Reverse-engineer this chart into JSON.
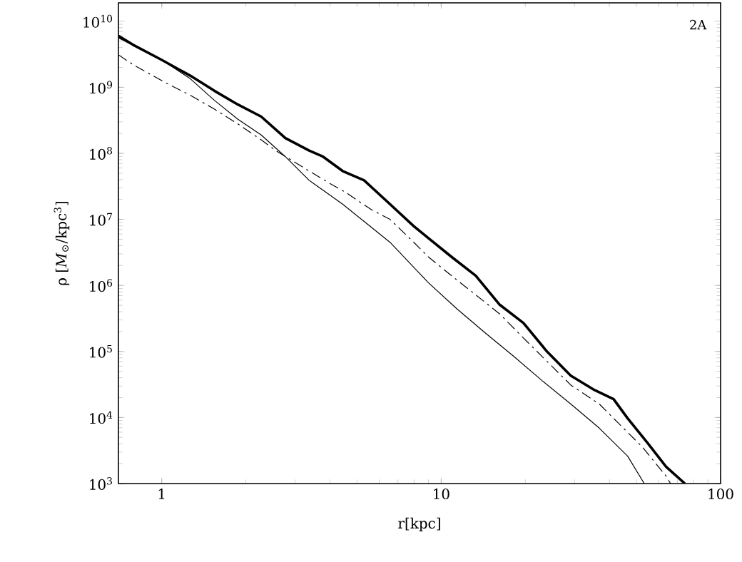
{
  "chart_data": {
    "type": "line",
    "xlabel": "r[kpc]",
    "ylabel": "ρ [*M*$_{⊙}$/kpc$^{3}$]",
    "log": "xy",
    "marker": "none",
    "grid": false,
    "xlim": [
      0.7,
      100
    ],
    "ylim": [
      1000,
      19000000000
    ],
    "xticks": [
      1,
      10,
      100
    ],
    "yticks": [
      {
        "value": 1000,
        "label": "10$^{3}$"
      },
      {
        "value": 10000,
        "label": "10$^{4}$"
      },
      {
        "value": 100000,
        "label": "10$^{5}$"
      },
      {
        "value": 1000000,
        "label": "10$^{6}$"
      },
      {
        "value": 10000000,
        "label": "10$^{7}$"
      },
      {
        "value": 100000000,
        "label": "10$^{8}$"
      },
      {
        "value": 1000000000,
        "label": "10$^{9}$"
      },
      {
        "value": 10000000000,
        "label": "10$^{10}$"
      }
    ],
    "annotations": [
      "2A"
    ],
    "series": [
      {
        "color": "#000000",
        "line_style": "solid",
        "x": [
          0.7,
          0.79,
          1.0,
          1.265,
          1.54,
          1.87,
          2.27,
          2.77,
          3.37,
          3.78,
          4.44,
          5.3,
          6.56,
          7.98,
          9.0,
          10.9,
          13.3,
          16.2,
          19.7,
          23.9,
          29.1,
          35.4,
          41.4,
          46.5,
          54.6,
          63.8,
          74.5
        ],
        "values": [
          6000000000.0,
          4400000000.0,
          2600000000.0,
          1500000000.0,
          890000000.0,
          550000000.0,
          360000000.0,
          170000000.0,
          110000000.0,
          89000000.0,
          54000000.0,
          39000000.0,
          17000000.0,
          7900000.0,
          5200000.0,
          2700000.0,
          1400000.0,
          510000.0,
          270000.0,
          100000.0,
          43000.0,
          26000.0,
          19000.0,
          9700.0,
          4200.0,
          1800.0,
          1000.0
        ]
      },
      {
        "color": "#000000",
        "line_style": "dashed",
        "x": [
          0.7,
          0.79,
          1.04,
          1.265,
          1.54,
          1.87,
          2.27,
          2.56,
          3.37,
          4.09,
          4.53,
          5.63,
          6.56,
          7.98,
          9.0,
          11.4,
          13.3,
          16.2,
          19.7,
          23.9,
          29.1,
          36.8,
          43.1,
          52.4,
          63.8,
          66.2
        ],
        "values": [
          3100000000.0,
          2200000000.0,
          1150000000.0,
          760000000.0,
          470000000.0,
          280000000.0,
          160000000.0,
          110000000.0,
          54000000.0,
          33000000.0,
          26000000.0,
          14000000.0,
          10000000.0,
          4500000.0,
          2700000.0,
          1200000.0,
          720000.0,
          370000.0,
          160000.0,
          71000.0,
          31000.0,
          16000.0,
          8200.0,
          3600.0,
          1300.0,
          1000.0
        ]
      },
      {
        "color": "#000000",
        "line_style": "solid",
        "x": [
          0.7,
          1.0,
          1.265,
          1.54,
          1.87,
          2.27,
          2.77,
          3.37,
          4.44,
          5.3,
          6.56,
          9.0,
          11.4,
          14.4,
          18.2,
          23.0,
          29.1,
          36.8,
          46.5,
          53.3
        ],
        "values": [
          5600000000.0,
          2600000000.0,
          1350000000.0,
          640000000.0,
          330000000.0,
          190000000.0,
          89000000.0,
          39000000.0,
          17000000.0,
          9300000.0,
          4500000.0,
          1100000.0,
          440000.0,
          190000.0,
          84000.0,
          36000.0,
          16000.0,
          6900.0,
          2600.0,
          1000.0
        ]
      }
    ]
  }
}
